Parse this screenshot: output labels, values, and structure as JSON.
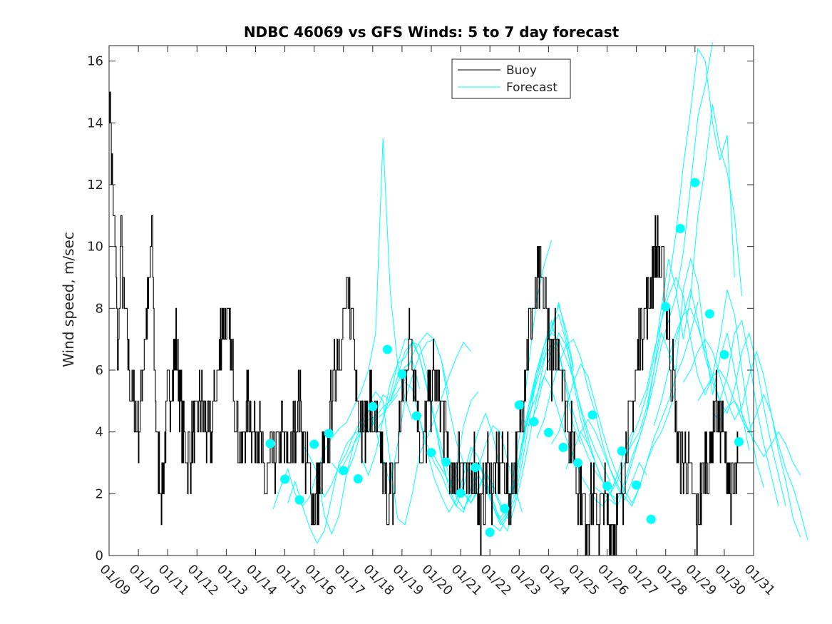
{
  "chart_data": {
    "type": "line",
    "title": "NDBC 46069 vs GFS Winds: 5 to 7 day forecast",
    "xlabel": "",
    "ylabel": "Wind speed, m/sec",
    "ylim": [
      0,
      16.5
    ],
    "yticks": [
      0,
      2,
      4,
      6,
      8,
      10,
      12,
      14,
      16
    ],
    "xlim": [
      0,
      22
    ],
    "xtick_labels": [
      "01/09",
      "01/10",
      "01/11",
      "01/12",
      "01/13",
      "01/14",
      "01/15",
      "01/16",
      "01/17",
      "01/18",
      "01/19",
      "01/20",
      "01/21",
      "01/22",
      "01/23",
      "01/24",
      "01/25",
      "01/26",
      "01/27",
      "01/28",
      "01/29",
      "01/30",
      "01/31"
    ],
    "legend": {
      "position": "top-right",
      "entries": [
        "Buoy",
        "Forecast"
      ]
    },
    "colors": {
      "buoy": "#000000",
      "forecast": "#00ffff",
      "axis": "#262626"
    },
    "buoy_anchors": [
      [
        0.0,
        15
      ],
      [
        0.05,
        14
      ],
      [
        0.1,
        12
      ],
      [
        0.2,
        10
      ],
      [
        0.3,
        6
      ],
      [
        0.4,
        11
      ],
      [
        0.5,
        8
      ],
      [
        0.6,
        7
      ],
      [
        0.8,
        5
      ],
      [
        1.0,
        4
      ],
      [
        1.2,
        7
      ],
      [
        1.35,
        8
      ],
      [
        1.45,
        11
      ],
      [
        1.6,
        4
      ],
      [
        1.8,
        2
      ],
      [
        2.0,
        5
      ],
      [
        2.2,
        6
      ],
      [
        2.3,
        7
      ],
      [
        2.5,
        4
      ],
      [
        2.7,
        3
      ],
      [
        2.9,
        4
      ],
      [
        3.1,
        5
      ],
      [
        3.3,
        4
      ],
      [
        3.5,
        4
      ],
      [
        3.7,
        6
      ],
      [
        3.9,
        8
      ],
      [
        4.1,
        7
      ],
      [
        4.3,
        5
      ],
      [
        4.5,
        3
      ],
      [
        4.7,
        5
      ],
      [
        4.9,
        4
      ],
      [
        5.1,
        4
      ],
      [
        5.3,
        2
      ],
      [
        5.5,
        3
      ],
      [
        5.7,
        3
      ],
      [
        5.9,
        4
      ],
      [
        6.1,
        3
      ],
      [
        6.3,
        4
      ],
      [
        6.5,
        5
      ],
      [
        6.7,
        3
      ],
      [
        6.9,
        2
      ],
      [
        7.1,
        2
      ],
      [
        7.3,
        3
      ],
      [
        7.5,
        4
      ],
      [
        7.7,
        6
      ],
      [
        7.9,
        7
      ],
      [
        8.1,
        8
      ],
      [
        8.3,
        8
      ],
      [
        8.5,
        5
      ],
      [
        8.7,
        4
      ],
      [
        8.9,
        5
      ],
      [
        9.1,
        4
      ],
      [
        9.3,
        3
      ],
      [
        9.5,
        2
      ],
      [
        9.7,
        2
      ],
      [
        9.9,
        4
      ],
      [
        10.1,
        6
      ],
      [
        10.3,
        7
      ],
      [
        10.5,
        5
      ],
      [
        10.7,
        3
      ],
      [
        10.9,
        5
      ],
      [
        11.1,
        6
      ],
      [
        11.3,
        5
      ],
      [
        11.5,
        4
      ],
      [
        11.7,
        2
      ],
      [
        11.9,
        3
      ],
      [
        12.1,
        3
      ],
      [
        12.3,
        2
      ],
      [
        12.5,
        3
      ],
      [
        12.7,
        1
      ],
      [
        12.9,
        3
      ],
      [
        13.1,
        2
      ],
      [
        13.3,
        3
      ],
      [
        13.5,
        3
      ],
      [
        13.7,
        2
      ],
      [
        13.9,
        3
      ],
      [
        14.1,
        5
      ],
      [
        14.3,
        7
      ],
      [
        14.5,
        8
      ],
      [
        14.7,
        9
      ],
      [
        14.9,
        8
      ],
      [
        15.1,
        6
      ],
      [
        15.3,
        7
      ],
      [
        15.5,
        6
      ],
      [
        15.7,
        4
      ],
      [
        15.9,
        3
      ],
      [
        16.1,
        2
      ],
      [
        16.3,
        1
      ],
      [
        16.5,
        2
      ],
      [
        16.7,
        1
      ],
      [
        16.9,
        2
      ],
      [
        17.1,
        1
      ],
      [
        17.3,
        1
      ],
      [
        17.5,
        2
      ],
      [
        17.7,
        4
      ],
      [
        17.9,
        5
      ],
      [
        18.1,
        7
      ],
      [
        18.3,
        8
      ],
      [
        18.5,
        9
      ],
      [
        18.7,
        10
      ],
      [
        18.9,
        9
      ],
      [
        19.1,
        7
      ],
      [
        19.3,
        5
      ],
      [
        19.5,
        3
      ],
      [
        19.7,
        3
      ],
      [
        19.9,
        2
      ],
      [
        20.1,
        1
      ],
      [
        20.3,
        3
      ],
      [
        20.5,
        3
      ],
      [
        20.7,
        5
      ],
      [
        20.9,
        4
      ],
      [
        21.1,
        3
      ],
      [
        21.3,
        2
      ],
      [
        21.5,
        3
      ]
    ],
    "forecast_lines": [
      {
        "x0": 5.6,
        "y": [
          1.5,
          2.2,
          2.8,
          2.0,
          1.6,
          1.9,
          2.7,
          3.4,
          3.8,
          4.1,
          4.3,
          4.8,
          5.3,
          6.0,
          7.2,
          13.5,
          8.5,
          6.2,
          5.1,
          4.4
        ]
      },
      {
        "x0": 6.1,
        "y": [
          1.7,
          2.4,
          1.6,
          0.9,
          0.4,
          0.8,
          1.9,
          3.0,
          3.6,
          3.9,
          4.1,
          4.0,
          4.4,
          4.6,
          4.9,
          5.2
        ]
      },
      {
        "x0": 6.6,
        "y": [
          3.6,
          3.2,
          2.7,
          1.3,
          0.7,
          1.3,
          2.6,
          3.6,
          4.0,
          4.4,
          4.5,
          4.8,
          5.0,
          5.6,
          6.1,
          6.3,
          5.4
        ]
      },
      {
        "x0": 7.1,
        "y": [
          2.4,
          1.9,
          2.3,
          2.9,
          3.3,
          3.9,
          4.4,
          4.0,
          4.6,
          5.2,
          5.0,
          5.3,
          5.7,
          6.5,
          6.9,
          7.2,
          7.0,
          6.3,
          5.2
        ]
      },
      {
        "x0": 7.6,
        "y": [
          3.0,
          2.7,
          3.1,
          3.6,
          4.2,
          4.9,
          5.3,
          5.0,
          3.0,
          1.2,
          1.0,
          2.0,
          3.3,
          3.8,
          4.4,
          5.1,
          5.8,
          6.4,
          6.9,
          6.6
        ]
      },
      {
        "x0": 8.1,
        "y": [
          2.6,
          3.2,
          4.0,
          4.7,
          4.1,
          3.1,
          2.3,
          3.6,
          5.0,
          5.8,
          6.5,
          6.9,
          7.0,
          6.3,
          4.8,
          3.7,
          3.0,
          2.6
        ]
      },
      {
        "x0": 8.6,
        "y": [
          3.2,
          2.6,
          3.3,
          4.4,
          5.6,
          6.2,
          6.4,
          6.9,
          6.8,
          5.9,
          4.4,
          3.1,
          2.2,
          2.8,
          4.2,
          5.0,
          5.3
        ]
      },
      {
        "x0": 9.1,
        "y": [
          4.0,
          4.4,
          5.2,
          6.2,
          7.0,
          7.0,
          6.4,
          5.5,
          4.4,
          3.2,
          2.2,
          1.6,
          2.2,
          3.2,
          4.0,
          4.6,
          3.9,
          2.8
        ]
      },
      {
        "x0": 9.6,
        "y": [
          5.0,
          5.8,
          6.6,
          6.9,
          6.4,
          5.4,
          4.4,
          3.5,
          2.6,
          1.9,
          1.5,
          2.0,
          2.8,
          3.6,
          4.2,
          4.0,
          3.1,
          2.2,
          1.4
        ]
      },
      {
        "x0": 10.1,
        "y": [
          5.6,
          5.4,
          4.4,
          3.4,
          2.5,
          1.9,
          1.4,
          1.8,
          2.6,
          3.5,
          3.2,
          2.4,
          1.7,
          1.2,
          1.6,
          2.9,
          4.4,
          6.4,
          8.3,
          9.4,
          10.2
        ]
      },
      {
        "x0": 10.6,
        "y": [
          4.4,
          3.6,
          3.0,
          2.6,
          2.0,
          1.6,
          1.4,
          2.2,
          3.0,
          2.5,
          1.8,
          1.1,
          0.8,
          1.6,
          2.6,
          3.8,
          5.1,
          6.3,
          7.4,
          8.1,
          7.3,
          6.1
        ]
      },
      {
        "x0": 11.1,
        "y": [
          3.2,
          2.8,
          2.4,
          1.9,
          1.5,
          1.9,
          2.6,
          2.2,
          1.6,
          1.1,
          1.4,
          2.4,
          3.6,
          4.8,
          5.8,
          6.6,
          7.2,
          8.2,
          7.1,
          6.0
        ]
      },
      {
        "x0": 11.6,
        "y": [
          3.0,
          2.6,
          2.1,
          1.7,
          2.1,
          2.7,
          2.3,
          1.7,
          1.3,
          2.0,
          3.4,
          4.8,
          6.0,
          6.8,
          7.6,
          6.6,
          5.4,
          4.2,
          3.6
        ]
      },
      {
        "x0": 12.1,
        "y": [
          2.0,
          1.7,
          2.2,
          2.7,
          2.2,
          1.6,
          1.2,
          1.8,
          3.0,
          4.4,
          5.8,
          6.8,
          7.4,
          7.8,
          6.9,
          5.6,
          4.4,
          3.6,
          3.0
        ]
      },
      {
        "x0": 12.6,
        "y": [
          3.0,
          2.4,
          1.6,
          1.0,
          1.3,
          2.4,
          3.7,
          5.0,
          6.0,
          6.8,
          7.2,
          7.0,
          6.4,
          5.7,
          4.8,
          4.0,
          3.4,
          2.9,
          2.4
        ]
      },
      {
        "x0": 13.1,
        "y": [
          1.0,
          0.8,
          1.3,
          2.4,
          3.6,
          4.8,
          5.6,
          6.4,
          6.8,
          6.6,
          5.6,
          4.6,
          3.8,
          3.2,
          2.7,
          2.4,
          2.0,
          1.6
        ]
      },
      {
        "x0": 13.6,
        "y": [
          1.6,
          2.4,
          3.6,
          4.6,
          5.2,
          5.8,
          5.4,
          4.6,
          3.8,
          3.2,
          2.6,
          2.2,
          1.8,
          1.6,
          2.0,
          2.6
        ]
      },
      {
        "x0": 14.1,
        "y": [
          4.4,
          4.2,
          4.8,
          5.8,
          6.6,
          7.2,
          6.8,
          5.8,
          4.7,
          3.8,
          3.0,
          2.4,
          2.0,
          2.6,
          3.4,
          4.0
        ]
      },
      {
        "x0": 14.6,
        "y": [
          3.8,
          4.4,
          5.4,
          6.2,
          6.8,
          7.0,
          6.4,
          5.4,
          4.6,
          3.6,
          2.8,
          2.2,
          1.8,
          2.4,
          3.0,
          2.6
        ]
      },
      {
        "x0": 15.1,
        "y": [
          3.6,
          4.0,
          4.8,
          5.6,
          6.2,
          5.8,
          4.9,
          4.0,
          3.2,
          2.6,
          2.1,
          1.7,
          2.2,
          3.0,
          3.6,
          4.0,
          4.6,
          5.4
        ]
      },
      {
        "x0": 15.6,
        "y": [
          2.8,
          3.4,
          4.0,
          4.4,
          4.0,
          3.4,
          2.8,
          2.3,
          1.9,
          1.6,
          2.2,
          3.0,
          3.8,
          4.4,
          5.0,
          5.8,
          6.4,
          7.2,
          8.2
        ]
      },
      {
        "x0": 16.1,
        "y": [
          4.0,
          3.6,
          3.0,
          2.4,
          2.0,
          1.8,
          2.4,
          3.2,
          3.8,
          4.6,
          5.6,
          6.8,
          7.6,
          8.4,
          9.8,
          12.0,
          14.2,
          15.2,
          16.6
        ]
      },
      {
        "x0": 16.6,
        "y": [
          2.2,
          2.0,
          1.8,
          1.6,
          2.2,
          3.0,
          3.8,
          4.6,
          6.0,
          7.6,
          8.8,
          10.4,
          12.6,
          14.4,
          16.4,
          16.0,
          14.0,
          12.8,
          13.6,
          9.0
        ]
      },
      {
        "x0": 17.1,
        "y": [
          2.0,
          2.4,
          3.0,
          3.8,
          4.4,
          5.2,
          6.4,
          8.0,
          9.6,
          8.6,
          7.0,
          8.4,
          11.0,
          12.6,
          14.6,
          13.2,
          12.4,
          11.0,
          8.4
        ]
      },
      {
        "x0": 17.6,
        "y": [
          3.2,
          3.6,
          4.0,
          4.8,
          6.0,
          7.2,
          6.6,
          6.0,
          8.6,
          9.6,
          8.8,
          6.8,
          5.2,
          6.4,
          7.2,
          6.0,
          4.6,
          3.4
        ]
      },
      {
        "x0": 18.1,
        "y": [
          4.8,
          5.4,
          6.6,
          7.6,
          8.4,
          9.0,
          8.4,
          7.0,
          5.8,
          5.2,
          5.8,
          7.0,
          8.6,
          7.8,
          6.0,
          4.4,
          3.0,
          2.2
        ]
      },
      {
        "x0": 18.6,
        "y": [
          4.2,
          5.0,
          6.0,
          7.0,
          7.8,
          8.6,
          7.6,
          6.4,
          5.6,
          5.0,
          5.8,
          7.2,
          7.6,
          6.4,
          4.8,
          3.6,
          2.6,
          1.6
        ]
      },
      {
        "x0": 19.1,
        "y": [
          6.4,
          7.2,
          7.8,
          8.0,
          7.4,
          6.6,
          5.8,
          5.0,
          4.6,
          5.4,
          6.6,
          7.2,
          6.2,
          4.8,
          3.6,
          2.6,
          1.6
        ]
      },
      {
        "x0": 19.6,
        "y": [
          5.6,
          6.0,
          6.6,
          7.0,
          6.6,
          5.8,
          5.0,
          4.4,
          4.8,
          5.8,
          6.6,
          5.8,
          4.6,
          3.4,
          2.4,
          1.2,
          0.6
        ]
      },
      {
        "x0": 20.1,
        "y": [
          5.0,
          5.4,
          5.8,
          6.0,
          5.6,
          5.0,
          4.4,
          4.0,
          4.6,
          5.2,
          4.6,
          3.6,
          2.8,
          2.2,
          1.4,
          0.5
        ]
      },
      {
        "x0": 20.6,
        "y": [
          4.6,
          4.4,
          4.8,
          5.0,
          4.6,
          4.0,
          3.6,
          3.2,
          3.6,
          4.0,
          3.6,
          3.0,
          2.6
        ]
      }
    ],
    "forecast_points": [
      {
        "x": 5.5,
        "y": 3.62
      },
      {
        "x": 6.0,
        "y": 2.47
      },
      {
        "x": 6.5,
        "y": 1.8
      },
      {
        "x": 7.0,
        "y": 3.6
      },
      {
        "x": 7.5,
        "y": 3.95
      },
      {
        "x": 8.0,
        "y": 2.75
      },
      {
        "x": 8.5,
        "y": 2.48
      },
      {
        "x": 9.0,
        "y": 4.82
      },
      {
        "x": 9.5,
        "y": 6.67
      },
      {
        "x": 10.0,
        "y": 5.87
      },
      {
        "x": 10.5,
        "y": 4.52
      },
      {
        "x": 11.0,
        "y": 3.33
      },
      {
        "x": 11.5,
        "y": 3.03
      },
      {
        "x": 12.0,
        "y": 2.02
      },
      {
        "x": 12.5,
        "y": 2.85
      },
      {
        "x": 13.0,
        "y": 0.75
      },
      {
        "x": 13.5,
        "y": 1.52
      },
      {
        "x": 14.0,
        "y": 4.87
      },
      {
        "x": 14.5,
        "y": 4.33
      },
      {
        "x": 15.0,
        "y": 3.98
      },
      {
        "x": 15.5,
        "y": 3.5
      },
      {
        "x": 16.0,
        "y": 3.0
      },
      {
        "x": 16.5,
        "y": 4.55
      },
      {
        "x": 17.0,
        "y": 2.25
      },
      {
        "x": 17.5,
        "y": 3.38
      },
      {
        "x": 18.0,
        "y": 2.28
      },
      {
        "x": 18.5,
        "y": 1.17
      },
      {
        "x": 19.0,
        "y": 8.05
      },
      {
        "x": 19.5,
        "y": 10.58
      },
      {
        "x": 20.0,
        "y": 12.07
      },
      {
        "x": 20.5,
        "y": 7.82
      },
      {
        "x": 21.0,
        "y": 6.5
      },
      {
        "x": 21.5,
        "y": 3.68
      }
    ]
  }
}
